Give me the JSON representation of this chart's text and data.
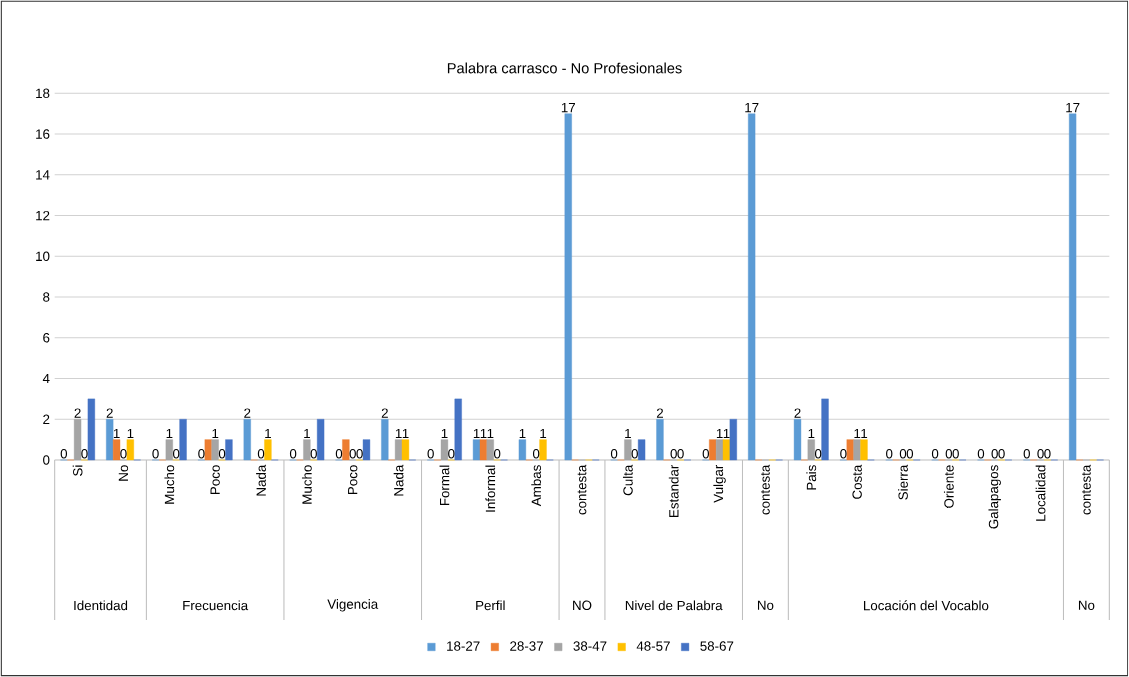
{
  "chart_data": {
    "type": "bar",
    "title": "Palabra  carrasco   - No  Profesionales",
    "categories": [
      "Si",
      "No",
      "Mucho",
      "Poco",
      "Nada",
      "Mucho",
      "Poco",
      "Nada",
      "Formal",
      "Informal",
      "Ambas",
      "contesta",
      "Culta",
      "Estandar",
      "Vulgar",
      "contesta",
      "Pais",
      "Costa",
      "Sierra",
      "Oriente",
      "Galapagos",
      "Localidad",
      "contesta"
    ],
    "series": [
      {
        "name": "18-27",
        "color": "#5b9bd5",
        "values": [
          0,
          2,
          0,
          0,
          2,
          0,
          0,
          2,
          0,
          1,
          1,
          17,
          0,
          2,
          0,
          17,
          2,
          0,
          0,
          0,
          0,
          0,
          17
        ],
        "value_labels": [
          "0",
          "2",
          "0",
          "0",
          "2",
          "0",
          "0",
          "2",
          "0",
          "1",
          "1",
          "17",
          "0",
          "2",
          "0",
          "17",
          "2",
          "0",
          "0",
          "0",
          "0",
          "0",
          "17"
        ]
      },
      {
        "name": "28-37",
        "color": "#ed7d31",
        "values": [
          0,
          1,
          0,
          1,
          0,
          0,
          1,
          0,
          0,
          1,
          0,
          0,
          0,
          0,
          1,
          0,
          0,
          1,
          0,
          0,
          0,
          0,
          0
        ],
        "value_labels": [
          null,
          "1",
          null,
          null,
          null,
          null,
          null,
          null,
          null,
          "1",
          null,
          null,
          null,
          null,
          null,
          null,
          null,
          null,
          null,
          null,
          null,
          null,
          null
        ]
      },
      {
        "name": "38-47",
        "color": "#a5a5a5",
        "values": [
          2,
          0,
          1,
          1,
          0,
          1,
          0,
          1,
          1,
          1,
          0,
          0,
          1,
          0,
          1,
          0,
          1,
          1,
          0,
          0,
          0,
          0,
          0
        ],
        "value_labels": [
          "2",
          "0",
          "1",
          "1",
          "0",
          "1",
          "0",
          "1",
          "1",
          "1",
          "0",
          null,
          "1",
          "0",
          "1",
          null,
          "1",
          "1",
          "0",
          "0",
          "0",
          "0",
          null
        ]
      },
      {
        "name": "48-57",
        "color": "#ffc000",
        "values": [
          0,
          1,
          0,
          0,
          1,
          0,
          0,
          1,
          0,
          0,
          1,
          0,
          0,
          0,
          1,
          0,
          0,
          1,
          0,
          0,
          0,
          0,
          0
        ],
        "value_labels": [
          "0",
          "1",
          "0",
          "0",
          "1",
          "0",
          "0",
          "1",
          "0",
          "0",
          "1",
          null,
          "0",
          "0",
          "1",
          null,
          "0",
          "1",
          "0",
          "0",
          "0",
          "0",
          null
        ]
      },
      {
        "name": "58-67",
        "color": "#4472c4",
        "values": [
          3,
          0,
          2,
          1,
          0,
          2,
          1,
          0,
          3,
          0,
          0,
          0,
          1,
          0,
          2,
          0,
          3,
          0,
          0,
          0,
          0,
          0,
          0
        ]
      }
    ],
    "annotations": [
      "Identidad",
      "Frecuencia",
      "Vigencia",
      "Perfil",
      "NO",
      "Nivel de Palabra",
      "No",
      "Locación del Vocablo",
      "No"
    ],
    "ylim": [
      0,
      18
    ],
    "yticks": [
      0,
      2,
      4,
      6,
      8,
      10,
      12,
      14,
      16,
      18
    ],
    "grid": "y",
    "legend": "bottom"
  }
}
